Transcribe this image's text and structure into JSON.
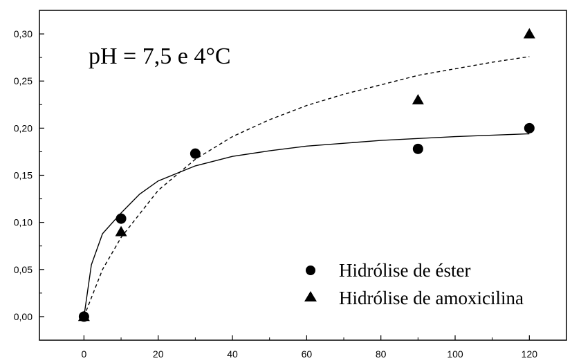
{
  "chart_data": {
    "type": "scatter",
    "title": "",
    "xlabel": "",
    "ylabel": "",
    "annotation": "pH = 7,5 e 4°C",
    "xlim": [
      -12,
      130
    ],
    "ylim": [
      -0.025,
      0.325
    ],
    "grid": false,
    "legend_placement": "bottom-right",
    "x_ticks": [
      0,
      20,
      40,
      60,
      80,
      100,
      120
    ],
    "x_tick_labels": [
      "0",
      "20",
      "40",
      "60",
      "80",
      "100",
      "120"
    ],
    "y_ticks": [
      0,
      0.05,
      0.1,
      0.15,
      0.2,
      0.25,
      0.3
    ],
    "y_tick_labels": [
      "0,00",
      "0,05",
      "0,10",
      "0,15",
      "0,20",
      "0,25",
      "0,30"
    ],
    "series": [
      {
        "name": "Hidrólise de éster",
        "marker": "circle",
        "color": "#000000",
        "x": [
          0,
          10,
          30,
          90,
          120
        ],
        "y": [
          0.0,
          0.104,
          0.173,
          0.178,
          0.2
        ],
        "fit": {
          "style": "solid",
          "x_range": [
            0,
            120
          ],
          "x": [
            0,
            2,
            5,
            10,
            15,
            20,
            30,
            40,
            50,
            60,
            80,
            100,
            120
          ],
          "y": [
            0.0,
            0.055,
            0.088,
            0.11,
            0.13,
            0.144,
            0.16,
            0.17,
            0.176,
            0.181,
            0.187,
            0.191,
            0.194
          ]
        }
      },
      {
        "name": "Hidrólise de amoxicilina",
        "marker": "triangle",
        "color": "#000000",
        "x": [
          0,
          10,
          90,
          120
        ],
        "y": [
          0.0,
          0.09,
          0.23,
          0.3
        ],
        "fit": {
          "style": "dashed",
          "x_range": [
            0,
            120
          ],
          "x": [
            0,
            5,
            10,
            20,
            30,
            40,
            50,
            60,
            70,
            80,
            90,
            100,
            110,
            120
          ],
          "y": [
            0.0,
            0.05,
            0.084,
            0.134,
            0.167,
            0.191,
            0.209,
            0.224,
            0.236,
            0.246,
            0.256,
            0.263,
            0.27,
            0.276
          ]
        }
      }
    ]
  }
}
